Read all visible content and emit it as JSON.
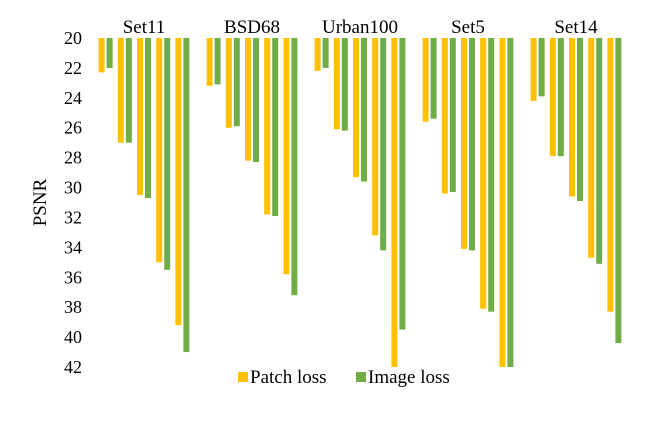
{
  "chart_data": {
    "type": "bar",
    "orientation": "vertical-hanging-from-top",
    "ylabel": "PSNR",
    "ylim": [
      20,
      42
    ],
    "y_axis_inverted": true,
    "yticks": [
      "20",
      "22",
      "24",
      "26",
      "28",
      "30",
      "32",
      "34",
      "36",
      "38",
      "40",
      "42"
    ],
    "grid": false,
    "legend_position": "bottom-center",
    "categories": [
      "Set11",
      "BSD68",
      "Urban100",
      "Set5",
      "Set14"
    ],
    "bars_per_category": 5,
    "series": [
      {
        "name": "Patch loss",
        "color": "#FFC000",
        "values": [
          [
            22.3,
            27.0,
            30.5,
            35.0,
            39.2
          ],
          [
            23.2,
            26.0,
            28.2,
            31.8,
            35.8
          ],
          [
            22.2,
            26.1,
            29.3,
            33.2,
            42.0
          ],
          [
            25.6,
            30.4,
            34.1,
            38.1,
            42.0
          ],
          [
            24.2,
            27.9,
            30.6,
            34.7,
            38.3
          ]
        ]
      },
      {
        "name": "Image loss",
        "color": "#70AD47",
        "values": [
          [
            22.0,
            27.0,
            30.7,
            35.5,
            41.0
          ],
          [
            23.1,
            25.9,
            28.3,
            31.9,
            37.2
          ],
          [
            22.0,
            26.2,
            29.6,
            34.2,
            39.5
          ],
          [
            25.4,
            30.3,
            34.2,
            38.3,
            42.0
          ],
          [
            23.9,
            27.9,
            30.9,
            35.1,
            40.4
          ]
        ]
      }
    ]
  }
}
